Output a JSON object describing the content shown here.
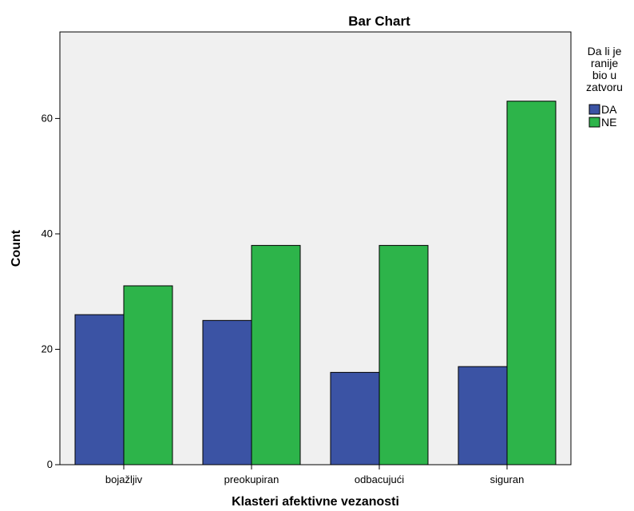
{
  "chart_data": {
    "type": "bar",
    "title": "Bar Chart",
    "xlabel": "Klasteri afektivne vezanosti",
    "ylabel": "Count",
    "categories": [
      "bojažljiv",
      "preokupiran",
      "odbacujući",
      "siguran"
    ],
    "series": [
      {
        "name": "DA",
        "values": [
          26,
          25,
          16,
          17
        ],
        "color": "#3b53a4"
      },
      {
        "name": "NE",
        "values": [
          31,
          38,
          38,
          63
        ],
        "color": "#2db44a"
      }
    ],
    "ylim": [
      0,
      75
    ],
    "yticks": [
      0,
      20,
      40,
      60
    ],
    "grid": false,
    "plot_background": "#f0f0f0",
    "legend": {
      "title_lines": [
        "Da li je",
        "ranije",
        "bio u",
        "zatvoru"
      ],
      "placement": "right"
    }
  }
}
